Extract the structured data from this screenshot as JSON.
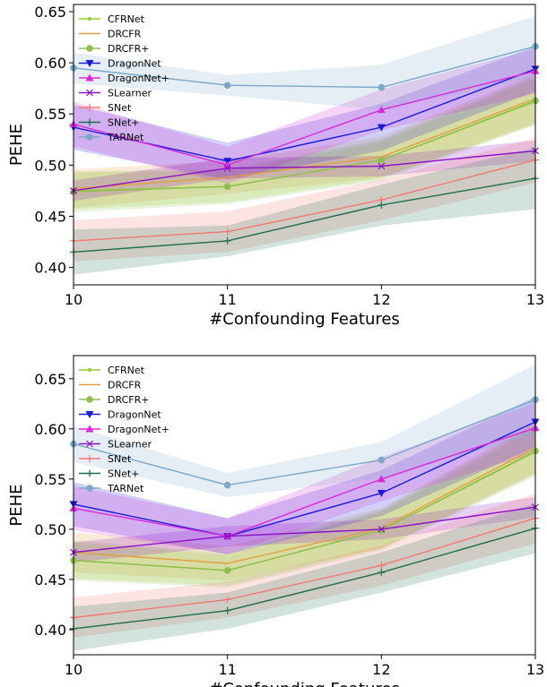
{
  "chart_data": [
    {
      "type": "line",
      "xlabel": "#Confounding Features",
      "ylabel": "PEHE",
      "x": [
        10,
        11,
        12,
        13
      ],
      "xticks": [
        "10",
        "11",
        "12",
        "13"
      ],
      "ylim": [
        0.383,
        0.657
      ],
      "yticks": [
        "0.40",
        "0.45",
        "0.50",
        "0.55",
        "0.60",
        "0.65"
      ],
      "ytick_values": [
        0.4,
        0.45,
        0.5,
        0.55,
        0.6,
        0.65
      ],
      "legend_position": "top-left",
      "series": [
        {
          "name": "CFRNet",
          "color": "#9acd32",
          "marker": "dot",
          "values": [
            0.475,
            0.479,
            0.505,
            0.562
          ],
          "band": [
            0.018,
            0.015,
            0.018,
            0.022
          ]
        },
        {
          "name": "DRCFR",
          "color": "#e0a040",
          "marker": "none",
          "values": [
            0.477,
            0.488,
            0.508,
            0.565
          ],
          "band": [
            0.019,
            0.016,
            0.02,
            0.024
          ]
        },
        {
          "name": "DRCFR+",
          "color": "#8fbf50",
          "marker": "circle",
          "values": [
            0.474,
            0.479,
            0.505,
            0.563
          ],
          "band": [
            0.02,
            0.017,
            0.02,
            0.024
          ]
        },
        {
          "name": "DragonNet",
          "color": "#1a1adc",
          "marker": "triangle-down",
          "values": [
            0.537,
            0.504,
            0.537,
            0.594
          ],
          "band": [
            0.022,
            0.018,
            0.023,
            0.022
          ]
        },
        {
          "name": "DragonNet+",
          "color": "#d92ad9",
          "marker": "triangle-up",
          "values": [
            0.54,
            0.5,
            0.554,
            0.592
          ],
          "band": [
            0.022,
            0.018,
            0.02,
            0.022
          ]
        },
        {
          "name": "SLearner",
          "color": "#8b10c8",
          "marker": "x",
          "values": [
            0.475,
            0.497,
            0.499,
            0.514
          ],
          "band": [
            0.01,
            0.01,
            0.01,
            0.01
          ]
        },
        {
          "name": "SNet",
          "color": "#f07a72",
          "marker": "plus",
          "values": [
            0.426,
            0.435,
            0.466,
            0.505
          ],
          "band": [
            0.02,
            0.02,
            0.02,
            0.022
          ]
        },
        {
          "name": "SNet+",
          "color": "#1f6e4e",
          "marker": "plus",
          "values": [
            0.415,
            0.426,
            0.461,
            0.487
          ],
          "band": [
            0.022,
            0.015,
            0.02,
            0.03
          ]
        },
        {
          "name": "TARNet",
          "color": "#7aa8c8",
          "marker": "circle",
          "values": [
            0.595,
            0.578,
            0.576,
            0.616
          ],
          "band": [
            0.015,
            0.01,
            0.022,
            0.03
          ]
        }
      ]
    },
    {
      "type": "line",
      "xlabel": "#Confounding Features",
      "ylabel": "PEHE",
      "x": [
        10,
        11,
        12,
        13
      ],
      "xticks": [
        "10",
        "11",
        "12",
        "13"
      ],
      "ylim": [
        0.375,
        0.673
      ],
      "yticks": [
        "0.40",
        "0.45",
        "0.50",
        "0.55",
        "0.60",
        "0.65"
      ],
      "ytick_values": [
        0.4,
        0.45,
        0.5,
        0.55,
        0.6,
        0.65
      ],
      "legend_position": "top-left",
      "series": [
        {
          "name": "CFRNet",
          "color": "#9acd32",
          "marker": "dot",
          "values": [
            0.469,
            0.459,
            0.499,
            0.577
          ],
          "band": [
            0.018,
            0.015,
            0.018,
            0.022
          ]
        },
        {
          "name": "DRCFR",
          "color": "#e0a040",
          "marker": "none",
          "values": [
            0.477,
            0.466,
            0.501,
            0.581
          ],
          "band": [
            0.02,
            0.017,
            0.02,
            0.025
          ]
        },
        {
          "name": "DRCFR+",
          "color": "#8fbf50",
          "marker": "circle",
          "values": [
            0.469,
            0.459,
            0.499,
            0.578
          ],
          "band": [
            0.02,
            0.017,
            0.02,
            0.025
          ]
        },
        {
          "name": "DragonNet",
          "color": "#1a1adc",
          "marker": "triangle-down",
          "values": [
            0.525,
            0.493,
            0.536,
            0.607
          ],
          "band": [
            0.022,
            0.018,
            0.023,
            0.025
          ]
        },
        {
          "name": "DragonNet+",
          "color": "#d92ad9",
          "marker": "triangle-up",
          "values": [
            0.521,
            0.493,
            0.55,
            0.601
          ],
          "band": [
            0.022,
            0.018,
            0.022,
            0.025
          ]
        },
        {
          "name": "SLearner",
          "color": "#8b10c8",
          "marker": "x",
          "values": [
            0.477,
            0.493,
            0.5,
            0.522
          ],
          "band": [
            0.01,
            0.01,
            0.01,
            0.01
          ]
        },
        {
          "name": "SNet",
          "color": "#f07a72",
          "marker": "plus",
          "values": [
            0.412,
            0.43,
            0.464,
            0.511
          ],
          "band": [
            0.02,
            0.018,
            0.02,
            0.025
          ]
        },
        {
          "name": "SNet+",
          "color": "#1f6e4e",
          "marker": "plus",
          "values": [
            0.401,
            0.419,
            0.457,
            0.501
          ],
          "band": [
            0.022,
            0.018,
            0.02,
            0.025
          ]
        },
        {
          "name": "TARNet",
          "color": "#7aa8c8",
          "marker": "circle",
          "values": [
            0.585,
            0.544,
            0.569,
            0.629
          ],
          "band": [
            0.018,
            0.012,
            0.018,
            0.035
          ]
        }
      ]
    }
  ]
}
